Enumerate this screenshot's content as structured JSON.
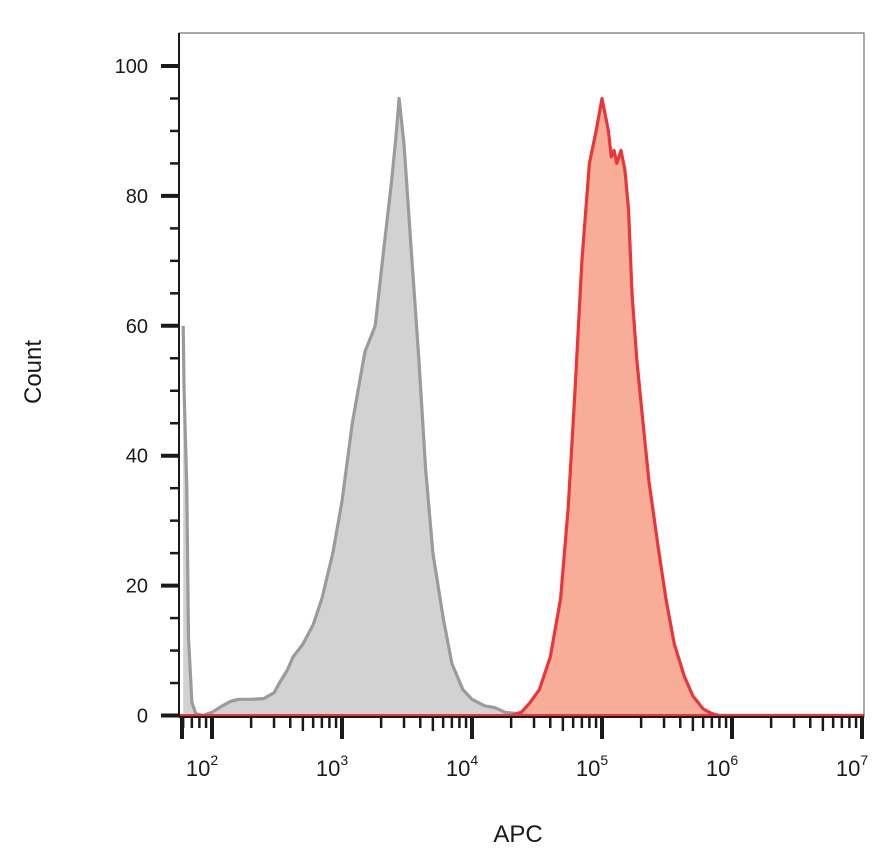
{
  "chart_data": {
    "type": "area",
    "xlabel": "APC",
    "ylabel": "Count",
    "x_scale": "log",
    "xlim": [
      60,
      12000000.0
    ],
    "ylim": [
      0,
      105
    ],
    "x_ticks": [
      {
        "value": 100,
        "base": "10",
        "exp": "2"
      },
      {
        "value": 1000,
        "base": "10",
        "exp": "3"
      },
      {
        "value": 10000,
        "base": "10",
        "exp": "4"
      },
      {
        "value": 100000,
        "base": "10",
        "exp": "5"
      },
      {
        "value": 1000000,
        "base": "10",
        "exp": "6"
      },
      {
        "value": 10000000,
        "base": "10",
        "exp": "7"
      }
    ],
    "y_ticks": [
      {
        "value": 0,
        "label": "0"
      },
      {
        "value": 20,
        "label": "20"
      },
      {
        "value": 40,
        "label": "40"
      },
      {
        "value": 60,
        "label": "60"
      },
      {
        "value": 80,
        "label": "80"
      },
      {
        "value": 100,
        "label": "100"
      }
    ],
    "grid": false,
    "series": [
      {
        "fill": "#d3d2d2",
        "stroke": "#9b9b9b",
        "x": [
          60,
          61,
          64,
          66,
          70,
          75,
          85,
          100,
          120,
          140,
          160,
          200,
          250,
          300,
          330,
          380,
          420,
          500,
          600,
          700,
          850,
          1000,
          1200,
          1500,
          1800,
          2100,
          2400,
          2600,
          2750,
          3000,
          3400,
          3900,
          4400,
          5000,
          6000,
          7000,
          8500,
          10000,
          12500,
          15000,
          18000,
          22000,
          27000,
          32000,
          40000
        ],
        "y": [
          60,
          50,
          35,
          12,
          2,
          0.3,
          0,
          0.5,
          1.5,
          2.2,
          2.5,
          2.5,
          2.6,
          3.5,
          5,
          7,
          9,
          11,
          14,
          18,
          25,
          33,
          45,
          56,
          60,
          72,
          82,
          89,
          95,
          88,
          72,
          55,
          38,
          25,
          15,
          8,
          4,
          2.5,
          1.5,
          1.2,
          0.5,
          0.3,
          0.1,
          0,
          0
        ]
      },
      {
        "fill": "#f7ad98",
        "stroke": "#e8373b",
        "x": [
          20000,
          24000,
          28000,
          33000,
          40000,
          48000,
          55000,
          62000,
          70000,
          80000,
          90000,
          100000,
          112000,
          118000,
          124000,
          130000,
          140000,
          150000,
          160000,
          170000,
          185000,
          200000,
          230000,
          270000,
          310000,
          360000,
          430000,
          500000,
          600000,
          700000,
          800000,
          1000000,
          1300000,
          1800000,
          3000000,
          12000000
        ],
        "y": [
          0,
          0.5,
          2,
          4,
          9,
          18,
          32,
          50,
          70,
          85,
          90,
          95,
          90,
          86,
          87,
          85,
          87,
          84,
          78,
          65,
          55,
          48,
          36,
          26,
          18,
          11,
          6,
          3,
          1,
          0.3,
          0,
          0,
          0,
          0,
          0,
          0
        ]
      }
    ]
  }
}
